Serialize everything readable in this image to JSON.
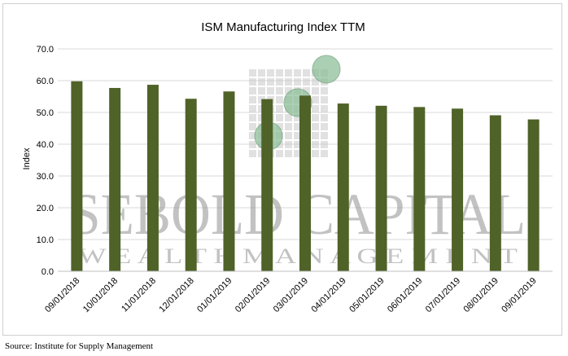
{
  "chart_data": {
    "type": "bar",
    "title": "ISM Manufacturing Index TTM",
    "xlabel": "",
    "ylabel": "Index",
    "ylim": [
      0,
      70
    ],
    "yticks": [
      "0.0",
      "10.0",
      "20.0",
      "30.0",
      "40.0",
      "50.0",
      "60.0",
      "70.0"
    ],
    "grid": true,
    "categories": [
      "09/01/2018",
      "10/01/2018",
      "11/01/2018",
      "12/01/2018",
      "01/01/2019",
      "02/01/2019",
      "03/01/2019",
      "04/01/2019",
      "05/01/2019",
      "06/01/2019",
      "07/01/2019",
      "08/01/2019",
      "09/01/2019"
    ],
    "values": [
      59.8,
      57.7,
      58.7,
      54.3,
      56.6,
      54.2,
      55.3,
      52.8,
      52.1,
      51.7,
      51.2,
      49.1,
      47.8
    ],
    "bar_color": "#4f6228",
    "gridline_color": "#d9d9d9"
  },
  "watermark": {
    "line1": "SEBOLD CAPITAL",
    "line2": "W E A L T H   M A N A G E M E N T",
    "logo": "sebold-capital-logo"
  },
  "source": "Source: Institute for Supply Management"
}
